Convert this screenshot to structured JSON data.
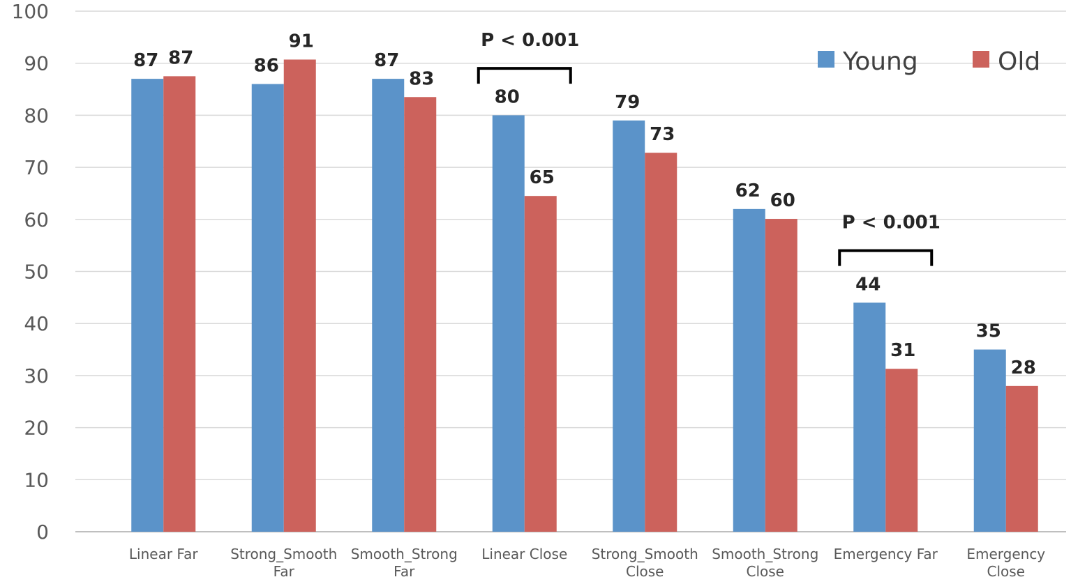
{
  "chart_data": {
    "type": "bar",
    "categories": [
      [
        "Linear Far"
      ],
      [
        "Strong_Smooth",
        "Far"
      ],
      [
        "Smooth_Strong",
        "Far"
      ],
      [
        "Linear Close"
      ],
      [
        "Strong_Smooth",
        "Close"
      ],
      [
        "Smooth_Strong",
        "Close"
      ],
      [
        "Emergency Far"
      ],
      [
        "Emergency",
        "Close"
      ]
    ],
    "series": [
      {
        "name": "Young",
        "color": "#5b93c9",
        "values": [
          87,
          86,
          87,
          80,
          79,
          62,
          44,
          35
        ],
        "labels": [
          "87",
          "86",
          "87",
          "80",
          "79",
          "62",
          "44",
          "35"
        ]
      },
      {
        "name": "Old",
        "color": "#cc625c",
        "values": [
          87.5,
          90.7,
          83.5,
          64.5,
          72.8,
          60.1,
          31.3,
          28
        ],
        "labels": [
          "87",
          "91",
          "83",
          "65",
          "73",
          "60",
          "31",
          "28"
        ]
      }
    ],
    "ylim": [
      0,
      100
    ],
    "yticks": [
      0,
      10,
      20,
      30,
      40,
      50,
      60,
      70,
      80,
      90,
      100
    ],
    "grid": true,
    "legend": "top-right",
    "annotations": [
      {
        "text": "P < 0.001",
        "category_index": 3,
        "bracket_y": 89
      },
      {
        "text": "P < 0.001",
        "category_index": 6,
        "bracket_y": 54
      }
    ]
  }
}
